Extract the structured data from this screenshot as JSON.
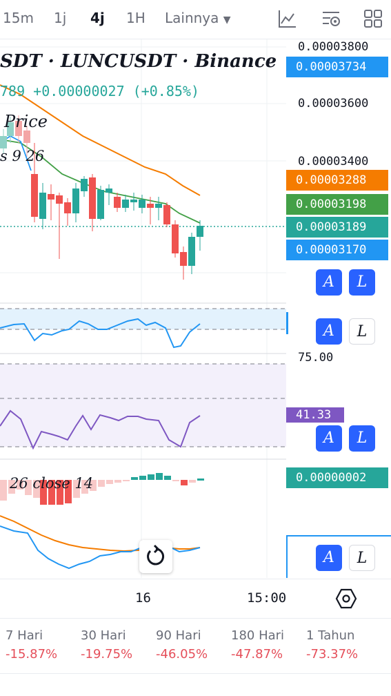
{
  "toolbar": {
    "timeframes": [
      "15m",
      "1j",
      "4j",
      "1H",
      "Lainnya"
    ],
    "active": "4j"
  },
  "symbol": {
    "title": "SDT · LUNCUSDT · Binance",
    "change_line": "789 +0.00000027 (+0.85%)",
    "change_prefix": "789",
    "change_abs": "+0.00000027",
    "change_pct": "(+0.85%)"
  },
  "overlays": {
    "price_label": "Price",
    "ma_label": "s 9 26",
    "macd_label": "26 close 14"
  },
  "price_axis": {
    "ticks": [
      "0.00003800",
      "0.00003600",
      "0.00003400"
    ],
    "tags": [
      {
        "value": "0.00003734",
        "color": "#2196f3"
      },
      {
        "value": "0.00003288",
        "color": "#f57c00"
      },
      {
        "value": "0.00003198",
        "color": "#43a047"
      },
      {
        "value": "0.00003189",
        "color": "#26a69a"
      },
      {
        "value": "0.00003170",
        "color": "#2196f3"
      }
    ]
  },
  "rsi_axis": {
    "tick": "75.00",
    "tag": "41.33",
    "tag_color": "#7e57c2"
  },
  "macd_axis": {
    "tag": "0.00000002",
    "tag_color": "#26a69a"
  },
  "buttons": {
    "a": "A",
    "l": "L"
  },
  "time_axis": {
    "labels": [
      "16",
      "15:00"
    ]
  },
  "performance": [
    {
      "label": "7 Hari",
      "value": "-15.87%"
    },
    {
      "label": "30 Hari",
      "value": "-19.75%"
    },
    {
      "label": "90 Hari",
      "value": "-46.05%"
    },
    {
      "label": "180 Hari",
      "value": "-47.87%"
    },
    {
      "label": "1 Tahun",
      "value": "-73.37%"
    }
  ],
  "colors": {
    "up": "#26a69a",
    "down": "#ef5350",
    "ma_fast": "#43a047",
    "ma_slow": "#f57c00",
    "blue_line": "#2196f3"
  }
}
